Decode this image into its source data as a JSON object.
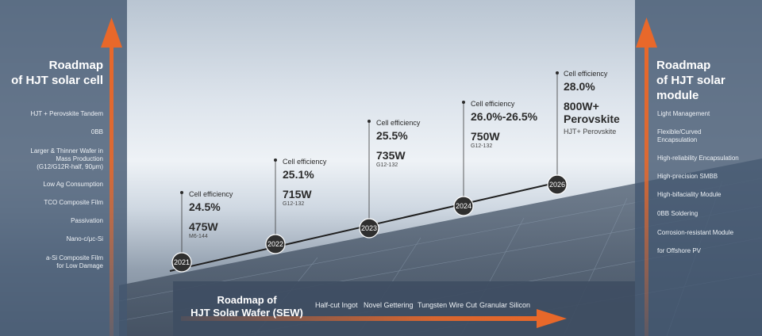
{
  "left_panel": {
    "title_line1": "Roadmap",
    "title_line2": "of HJT solar cell",
    "items": [
      "HJT + Perovskite Tandem",
      "0BB",
      "Larger & Thinner Wafer in",
      "Mass Production",
      "(G12/G12R-half, 90μm)",
      "Low Ag Consumption",
      "TCO Composite Film",
      "Passivation",
      "Nano-c/μc-Si",
      "a-Si Composite Film",
      "for Low Damage"
    ]
  },
  "right_panel": {
    "title_line1": "Roadmap",
    "title_line2": "of HJT solar module",
    "items": [
      "Light Management",
      "Flexible/Curved",
      "Encapsulation",
      "High-reliability Encapsulation",
      "High-precision SMBB",
      "High-bifaciality Module",
      "0BB Soldering",
      "Corrosion-resistant Module",
      "for Offshore PV"
    ]
  },
  "timeline": [
    {
      "year": "2021",
      "label": "Cell efficiency",
      "efficiency": "24.5%",
      "power": "475W",
      "wafer": "M6-144"
    },
    {
      "year": "2022",
      "label": "Cell efficiency",
      "efficiency": "25.1%",
      "power": "715W",
      "wafer": "G12-132"
    },
    {
      "year": "2023",
      "label": "Cell efficiency",
      "efficiency": "25.5%",
      "power": "735W",
      "wafer": "G12-132"
    },
    {
      "year": "2024",
      "label": "Cell efficiency",
      "efficiency": "26.0%-26.5%",
      "power": "750W",
      "wafer": "G12-132"
    },
    {
      "year": "2026",
      "label": "Cell efficiency",
      "efficiency": "28.0%",
      "power_line1": "800W+",
      "power_line2": "Perovskite",
      "note": "HJT+ Perovskite"
    }
  ],
  "sew": {
    "title_line1": "Roadmap of",
    "title_line2": "HJT Solar Wafer (SEW)",
    "items": [
      "Half-cut Ingot",
      "Novel Gettering",
      "Tungsten Wire Cut",
      "Granular Silicon"
    ]
  },
  "colors": {
    "accent": "#e8682a",
    "panel": "#445870",
    "node": "#2f2f2f"
  }
}
